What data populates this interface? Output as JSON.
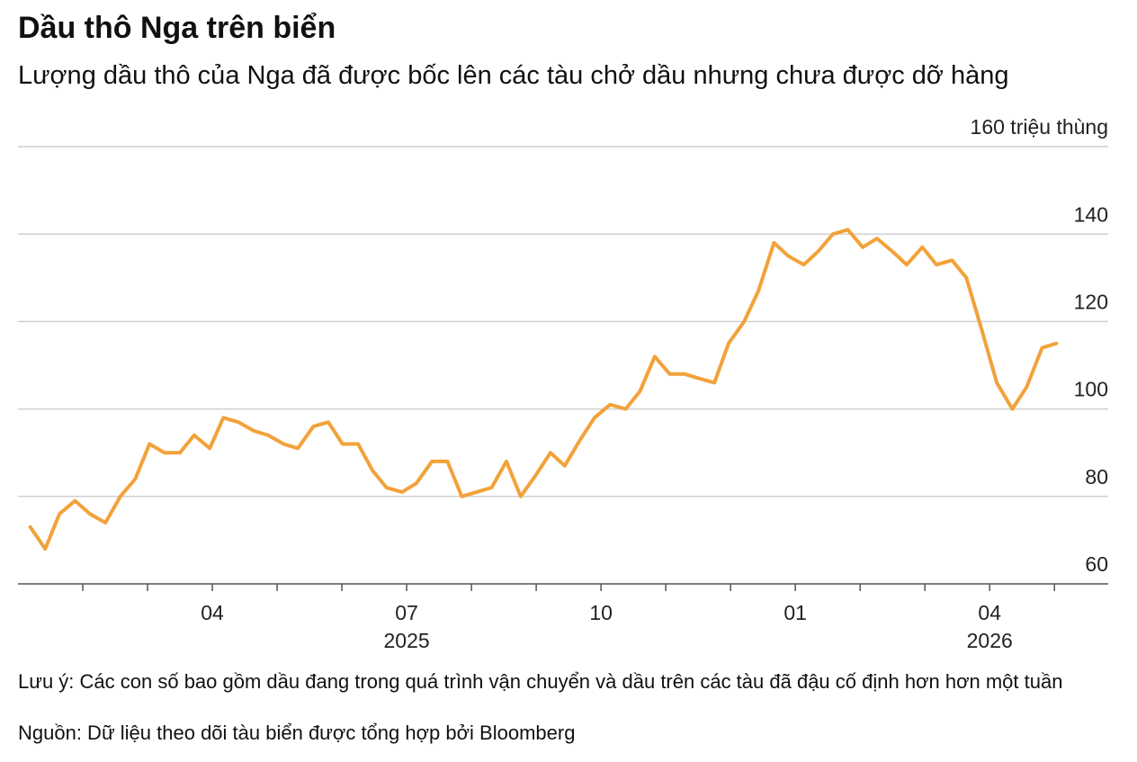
{
  "chart_data": {
    "type": "line",
    "title": "Dầu thô Nga trên biển",
    "subtitle": "Lượng dầu thô của Nga đã được bốc lên các tàu chở dầu nhưng chưa được dỡ hàng",
    "note": "Lưu ý: Các con số bao gồm dầu đang trong quá trình vận chuyển và dầu trên các tàu đã đậu cố định hơn hơn một tuần",
    "source": "Nguồn: Dữ liệu theo dõi tàu biển được tổng hợp bởi Bloomberg",
    "x": [
      0.19,
      0.42,
      0.64,
      0.88,
      1.11,
      1.35,
      1.58,
      1.81,
      2.03,
      2.26,
      2.5,
      2.72,
      2.96,
      3.17,
      3.4,
      3.64,
      3.86,
      4.1,
      4.32,
      4.56,
      4.79,
      5.01,
      5.25,
      5.47,
      5.69,
      5.93,
      6.15,
      6.39,
      6.63,
      6.85,
      7.08,
      7.31,
      7.54,
      7.76,
      8.0,
      8.22,
      8.44,
      8.68,
      8.9,
      9.14,
      9.38,
      9.6,
      9.83,
      10.06,
      10.29,
      10.51,
      10.75,
      10.97,
      11.21,
      11.43,
      11.67,
      11.89,
      12.13,
      12.35,
      12.58,
      12.81,
      13.04,
      13.26,
      13.5,
      13.72,
      13.96,
      14.18,
      14.42,
      14.64,
      14.88,
      15.11,
      15.35,
      15.57,
      15.81,
      16.03
    ],
    "series": [
      {
        "color": "#f2a23a",
        "values": [
          73,
          68,
          76,
          79,
          76,
          74,
          80,
          84,
          92,
          90,
          90,
          94,
          91,
          98,
          97,
          95,
          94,
          92,
          91,
          96,
          97,
          92,
          92,
          86,
          82,
          81,
          83,
          88,
          88,
          80,
          81,
          82,
          88,
          80,
          85,
          90,
          87,
          93,
          98,
          101,
          100,
          104,
          112,
          108,
          108,
          107,
          106,
          115,
          120,
          127,
          138,
          135,
          133,
          136,
          140,
          141,
          137,
          139,
          136,
          133,
          137,
          133,
          134,
          130,
          118,
          106,
          100,
          105,
          114,
          115
        ]
      }
    ],
    "xlim": [
      0,
      16.83
    ],
    "xticks": [
      {
        "value": 3,
        "label": "04"
      },
      {
        "value": 6,
        "label": "07"
      },
      {
        "value": 9,
        "label": "10"
      },
      {
        "value": 12,
        "label": "01"
      },
      {
        "value": 15,
        "label": "04"
      }
    ],
    "xminor_ticks": [
      1,
      2,
      4,
      5,
      7,
      8,
      10,
      11,
      13,
      14,
      16
    ],
    "year_labels": [
      {
        "value": 6,
        "label": "2025"
      },
      {
        "value": 15,
        "label": "2026"
      }
    ],
    "ylim": [
      60,
      160
    ],
    "yticks": [
      60,
      80,
      100,
      120,
      140,
      {
        "value": 160,
        "label": "160 triệu thùng"
      }
    ],
    "grid": true
  }
}
